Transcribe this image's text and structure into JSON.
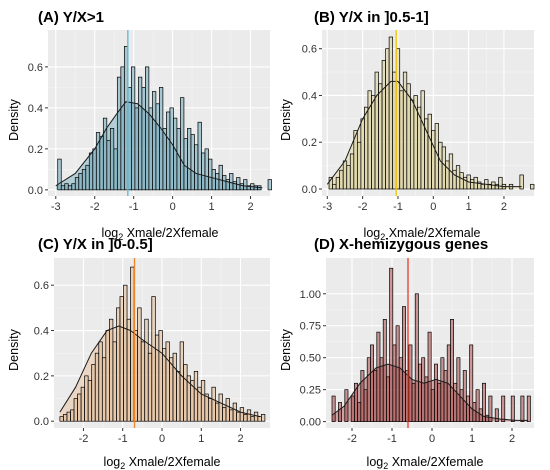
{
  "figure": {
    "panels": [
      {
        "title": "(A) Y/X>1"
      },
      {
        "title": "(B) Y/X in ]0.5-1]"
      },
      {
        "title": "(C) Y/X in ]0-0.5]"
      },
      {
        "title": "(D) X-hemizygous genes"
      }
    ],
    "ylabel": "Density",
    "xlabel_prefix": "log",
    "xlabel_subscript": "2",
    "xlabel_rest": " Xmale/2Xfemale"
  },
  "chart_data": [
    {
      "type": "histogram",
      "title": "(A) Y/X>1",
      "xlabel": "log2 Xmale/2Xfemale",
      "ylabel": "Density",
      "xlim": [
        -3.2,
        2.5
      ],
      "ylim": [
        -0.03,
        0.78
      ],
      "xticks": [
        -3,
        -2,
        -1,
        0,
        1,
        2
      ],
      "yticks": [
        0.0,
        0.2,
        0.4,
        0.6
      ],
      "ytick_labels": [
        "0.0",
        "0.2",
        "0.4",
        "0.6"
      ],
      "fill": "#6fa8b8",
      "line_color": "#5bb8d8",
      "median_line": -1.15,
      "bins": {
        "start": -2.95,
        "width": 0.09,
        "density": [
          0.15,
          0.02,
          0.03,
          0.02,
          0.03,
          0.06,
          0.08,
          0.1,
          0.12,
          0.18,
          0.2,
          0.28,
          0.26,
          0.35,
          0.24,
          0.3,
          0.2,
          0.55,
          0.6,
          0.7,
          0.5,
          0.6,
          0.4,
          0.55,
          0.5,
          0.6,
          0.4,
          0.48,
          0.42,
          0.5,
          0.3,
          0.38,
          0.4,
          0.35,
          0.3,
          0.45,
          0.25,
          0.3,
          0.27,
          0.22,
          0.33,
          0.18,
          0.2,
          0.15,
          0.1,
          0.08,
          0.12,
          0.07,
          0.05,
          0.08,
          0.04,
          0.06,
          0.03,
          0.05,
          0.02,
          0.03,
          0.02,
          0.02,
          0.0,
          0.0,
          0.05
        ]
      },
      "density_curve": {
        "x": [
          -3.0,
          -2.5,
          -2.0,
          -1.7,
          -1.4,
          -1.2,
          -0.9,
          -0.6,
          -0.3,
          0.0,
          0.3,
          0.6,
          1.0,
          1.4,
          1.8,
          2.3
        ],
        "y": [
          0.02,
          0.08,
          0.2,
          0.3,
          0.38,
          0.43,
          0.42,
          0.37,
          0.3,
          0.22,
          0.12,
          0.08,
          0.06,
          0.04,
          0.02,
          0.01
        ]
      }
    },
    {
      "type": "histogram",
      "title": "(B) Y/X in ]0.5-1]",
      "xlabel": "log2 Xmale/2Xfemale",
      "ylabel": "Density",
      "xlim": [
        -3.15,
        2.85
      ],
      "ylim": [
        -0.03,
        0.68
      ],
      "xticks": [
        -3,
        -2,
        -1,
        0,
        1,
        2
      ],
      "yticks": [
        0.0,
        0.2,
        0.4,
        0.6
      ],
      "ytick_labels": [
        "0.0",
        "0.2",
        "0.4",
        "0.6"
      ],
      "fill": "#ddd29a",
      "line_color": "#f5c400",
      "median_line": -1.05,
      "bins": {
        "start": -2.95,
        "width": 0.1,
        "density": [
          0.05,
          0.02,
          0.05,
          0.08,
          0.12,
          0.1,
          0.15,
          0.25,
          0.2,
          0.3,
          0.35,
          0.42,
          0.4,
          0.5,
          0.45,
          0.55,
          0.6,
          0.65,
          0.5,
          0.6,
          0.42,
          0.5,
          0.45,
          0.38,
          0.4,
          0.35,
          0.42,
          0.3,
          0.32,
          0.25,
          0.28,
          0.2,
          0.18,
          0.12,
          0.15,
          0.08,
          0.1,
          0.07,
          0.05,
          0.06,
          0.04,
          0.05,
          0.03,
          0.02,
          0.04,
          0.02,
          0.03,
          0.02,
          0.05,
          0.02,
          0.0,
          0.02,
          0.0,
          0.0,
          0.06,
          0.0,
          0.0,
          0.02
        ]
      },
      "density_curve": {
        "x": [
          -3.0,
          -2.5,
          -2.0,
          -1.6,
          -1.2,
          -1.0,
          -0.6,
          -0.2,
          0.2,
          0.6,
          1.0,
          1.5,
          2.0,
          2.5
        ],
        "y": [
          0.02,
          0.12,
          0.3,
          0.4,
          0.46,
          0.46,
          0.38,
          0.25,
          0.12,
          0.06,
          0.03,
          0.02,
          0.01,
          0.01
        ]
      }
    },
    {
      "type": "histogram",
      "title": "(C) Y/X in ]0-0.5]",
      "xlabel": "log2 Xmale/2Xfemale",
      "ylabel": "Density",
      "xlim": [
        -2.75,
        2.75
      ],
      "ylim": [
        -0.03,
        0.72
      ],
      "xticks": [
        -2,
        -1,
        0,
        1,
        2
      ],
      "yticks": [
        0.0,
        0.2,
        0.4,
        0.6
      ],
      "ytick_labels": [
        "0.0",
        "0.2",
        "0.4",
        "0.6"
      ],
      "fill": "#e6bd95",
      "line_color": "#e9842f",
      "median_line": -0.7,
      "bins": {
        "start": -2.6,
        "width": 0.09,
        "density": [
          0.02,
          0.03,
          0.04,
          0.05,
          0.1,
          0.12,
          0.15,
          0.2,
          0.18,
          0.25,
          0.3,
          0.35,
          0.28,
          0.4,
          0.45,
          0.35,
          0.5,
          0.55,
          0.6,
          0.45,
          0.68,
          0.4,
          0.5,
          0.35,
          0.45,
          0.3,
          0.55,
          0.38,
          0.4,
          0.32,
          0.35,
          0.28,
          0.3,
          0.22,
          0.35,
          0.25,
          0.2,
          0.18,
          0.22,
          0.15,
          0.18,
          0.12,
          0.1,
          0.15,
          0.08,
          0.12,
          0.06,
          0.1,
          0.05,
          0.08,
          0.04,
          0.06,
          0.03,
          0.05,
          0.02,
          0.04,
          0.02,
          0.03
        ]
      },
      "density_curve": {
        "x": [
          -2.6,
          -2.2,
          -1.8,
          -1.4,
          -1.1,
          -0.8,
          -0.5,
          0.0,
          0.5,
          1.0,
          1.5,
          2.0,
          2.5
        ],
        "y": [
          0.04,
          0.15,
          0.3,
          0.4,
          0.42,
          0.4,
          0.36,
          0.3,
          0.2,
          0.12,
          0.08,
          0.04,
          0.02
        ]
      }
    },
    {
      "type": "histogram",
      "title": "(D) X-hemizygous genes",
      "xlabel": "log2 Xmale/2Xfemale",
      "ylabel": "Density",
      "xlim": [
        -2.65,
        2.55
      ],
      "ylim": [
        -0.05,
        1.28
      ],
      "xticks": [
        -2,
        -1,
        0,
        1,
        2
      ],
      "yticks": [
        0.0,
        0.25,
        0.5,
        0.75,
        1.0
      ],
      "ytick_labels": [
        "0.00",
        "0.25",
        "0.50",
        "0.75",
        "1.00"
      ],
      "fill": "#a94a4a",
      "line_color": "#e53a2a",
      "median_line": -0.6,
      "bins": {
        "start": -2.5,
        "width": 0.08,
        "density": [
          0.2,
          0.0,
          0.15,
          0.0,
          0.25,
          0.0,
          0.2,
          0.3,
          0.15,
          0.4,
          0.25,
          0.5,
          0.6,
          0.4,
          0.7,
          0.5,
          0.8,
          0.35,
          1.2,
          0.6,
          0.75,
          0.5,
          0.9,
          0.4,
          0.6,
          0.3,
          1.0,
          0.45,
          0.5,
          0.35,
          0.7,
          0.25,
          0.45,
          0.3,
          0.5,
          0.4,
          0.6,
          0.8,
          0.3,
          0.5,
          0.25,
          0.4,
          0.2,
          0.6,
          0.15,
          0.25,
          0.1,
          0.3,
          0.05,
          0.2,
          0.0,
          0.1,
          0.0,
          0.2,
          0.0,
          0.0,
          0.2,
          0.0,
          0.0,
          0.2,
          0.0,
          0.2
        ]
      },
      "density_curve": {
        "x": [
          -2.5,
          -2.2,
          -1.8,
          -1.4,
          -1.1,
          -0.8,
          -0.5,
          -0.2,
          0.1,
          0.4,
          0.7,
          1.0,
          1.3,
          1.7,
          2.1,
          2.4
        ],
        "y": [
          0.05,
          0.12,
          0.3,
          0.42,
          0.45,
          0.42,
          0.33,
          0.3,
          0.33,
          0.3,
          0.2,
          0.1,
          0.04,
          0.02,
          0.01,
          0.01
        ]
      }
    }
  ]
}
